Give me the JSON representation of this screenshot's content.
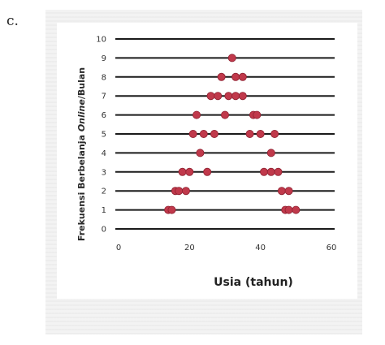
{
  "figure_label": "c.",
  "chart_data": {
    "type": "scatter",
    "title": "",
    "xlabel": "Usia (tahun)",
    "ylabel_parts": [
      "Frekuensi Berbelanja ",
      "Online",
      "/Bulan"
    ],
    "xlim": [
      0,
      60
    ],
    "ylim": [
      0,
      10
    ],
    "x_ticks": [
      0,
      20,
      40,
      60
    ],
    "x_tick_labels": [
      "0",
      "20",
      "40",
      "60"
    ],
    "y_ticks": [
      0,
      1,
      2,
      3,
      4,
      5,
      6,
      7,
      8,
      9,
      10
    ],
    "grid": "horizontal",
    "marker_color": "#c0394b",
    "line_color": "#1a1a1a",
    "points": [
      {
        "x": 14,
        "y": 1
      },
      {
        "x": 15,
        "y": 1
      },
      {
        "x": 47,
        "y": 1
      },
      {
        "x": 48,
        "y": 1
      },
      {
        "x": 50,
        "y": 1
      },
      {
        "x": 16,
        "y": 2
      },
      {
        "x": 17,
        "y": 2
      },
      {
        "x": 19,
        "y": 2
      },
      {
        "x": 46,
        "y": 2
      },
      {
        "x": 48,
        "y": 2
      },
      {
        "x": 18,
        "y": 3
      },
      {
        "x": 20,
        "y": 3
      },
      {
        "x": 25,
        "y": 3
      },
      {
        "x": 41,
        "y": 3
      },
      {
        "x": 43,
        "y": 3
      },
      {
        "x": 45,
        "y": 3
      },
      {
        "x": 23,
        "y": 4
      },
      {
        "x": 43,
        "y": 4
      },
      {
        "x": 21,
        "y": 5
      },
      {
        "x": 24,
        "y": 5
      },
      {
        "x": 27,
        "y": 5
      },
      {
        "x": 37,
        "y": 5
      },
      {
        "x": 40,
        "y": 5
      },
      {
        "x": 44,
        "y": 5
      },
      {
        "x": 22,
        "y": 6
      },
      {
        "x": 30,
        "y": 6
      },
      {
        "x": 38,
        "y": 6
      },
      {
        "x": 39,
        "y": 6
      },
      {
        "x": 26,
        "y": 7
      },
      {
        "x": 28,
        "y": 7
      },
      {
        "x": 31,
        "y": 7
      },
      {
        "x": 33,
        "y": 7
      },
      {
        "x": 35,
        "y": 7
      },
      {
        "x": 29,
        "y": 8
      },
      {
        "x": 33,
        "y": 8
      },
      {
        "x": 35,
        "y": 8
      },
      {
        "x": 32,
        "y": 9
      }
    ]
  }
}
